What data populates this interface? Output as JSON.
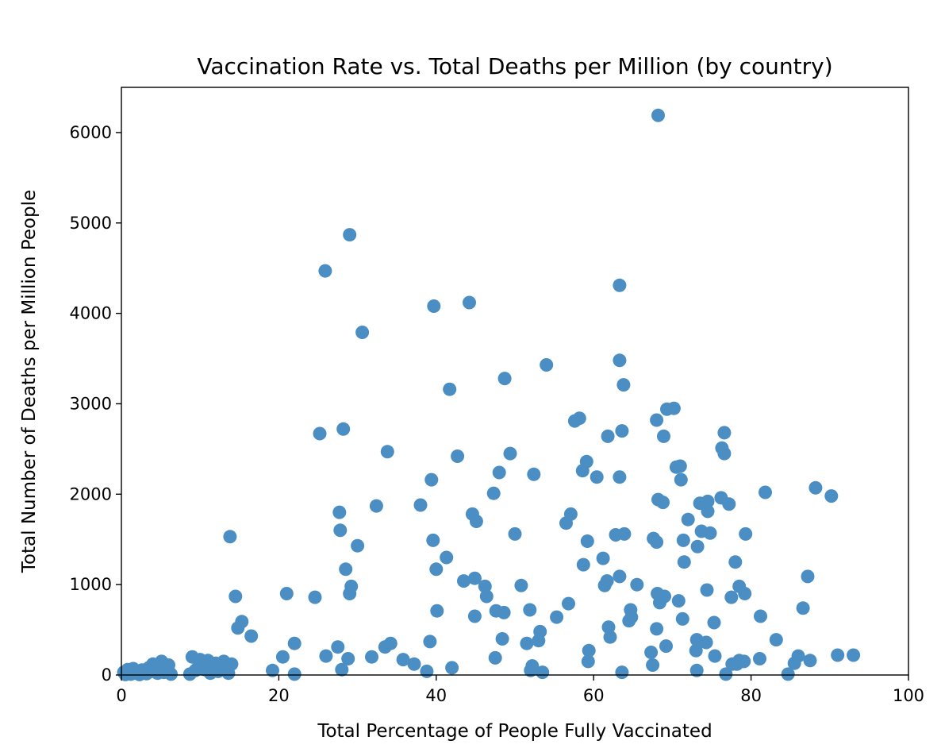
{
  "chart_data": {
    "type": "scatter",
    "title": "Vaccination Rate vs. Total Deaths per Million (by country)",
    "xlabel": "Total Percentage of People Fully Vaccinated",
    "ylabel": "Total Number of Deaths per Million People",
    "xlim": [
      0,
      100
    ],
    "ylim": [
      0,
      6500
    ],
    "xticks": [
      0,
      20,
      40,
      60,
      80,
      100
    ],
    "yticks": [
      0,
      1000,
      2000,
      3000,
      4000,
      5000,
      6000
    ],
    "grid": false,
    "legend": "none",
    "marker_color": "#4a8ec4",
    "series": [
      {
        "points": [
          [
            0.3,
            30
          ],
          [
            0.5,
            5
          ],
          [
            0.8,
            60
          ],
          [
            1.0,
            40
          ],
          [
            1.2,
            10
          ],
          [
            1.5,
            70
          ],
          [
            1.8,
            20
          ],
          [
            2.0,
            45
          ],
          [
            2.3,
            5
          ],
          [
            2.6,
            55
          ],
          [
            2.9,
            30
          ],
          [
            3.2,
            15
          ],
          [
            3.5,
            80
          ],
          [
            3.8,
            40
          ],
          [
            4.0,
            120
          ],
          [
            4.3,
            60
          ],
          [
            4.6,
            20
          ],
          [
            4.9,
            90
          ],
          [
            5.1,
            150
          ],
          [
            5.4,
            30
          ],
          [
            5.7,
            70
          ],
          [
            6.0,
            110
          ],
          [
            6.3,
            10
          ],
          [
            2.2,
            35
          ],
          [
            3.0,
            25
          ],
          [
            4.4,
            50
          ],
          [
            0.9,
            15
          ],
          [
            5.8,
            45
          ],
          [
            8.7,
            10
          ],
          [
            9.0,
            200
          ],
          [
            9.4,
            50
          ],
          [
            9.8,
            90
          ],
          [
            10.0,
            170
          ],
          [
            10.3,
            130
          ],
          [
            10.6,
            60
          ],
          [
            11.0,
            160
          ],
          [
            11.3,
            20
          ],
          [
            11.6,
            80
          ],
          [
            12.0,
            130
          ],
          [
            12.3,
            40
          ],
          [
            12.6,
            110
          ],
          [
            13.0,
            150
          ],
          [
            13.3,
            70
          ],
          [
            13.6,
            20
          ],
          [
            14.0,
            120
          ],
          [
            13.8,
            1530
          ],
          [
            14.5,
            870
          ],
          [
            14.8,
            520
          ],
          [
            15.3,
            590
          ],
          [
            16.5,
            430
          ],
          [
            19.2,
            50
          ],
          [
            20.5,
            200
          ],
          [
            21.0,
            900
          ],
          [
            22.0,
            350
          ],
          [
            22.0,
            10
          ],
          [
            24.6,
            860
          ],
          [
            25.2,
            2670
          ],
          [
            25.9,
            4470
          ],
          [
            26.0,
            210
          ],
          [
            27.5,
            310
          ],
          [
            27.7,
            1800
          ],
          [
            27.8,
            1600
          ],
          [
            28.0,
            60
          ],
          [
            28.2,
            2720
          ],
          [
            28.5,
            1170
          ],
          [
            29.0,
            4870
          ],
          [
            28.8,
            180
          ],
          [
            29.0,
            900
          ],
          [
            29.2,
            980
          ],
          [
            30.0,
            1430
          ],
          [
            30.6,
            3790
          ],
          [
            31.8,
            200
          ],
          [
            32.4,
            1870
          ],
          [
            33.5,
            310
          ],
          [
            33.8,
            2470
          ],
          [
            34.2,
            350
          ],
          [
            35.8,
            170
          ],
          [
            37.2,
            120
          ],
          [
            38.0,
            1880
          ],
          [
            38.8,
            40
          ],
          [
            39.2,
            370
          ],
          [
            39.4,
            2160
          ],
          [
            39.6,
            1490
          ],
          [
            39.7,
            4080
          ],
          [
            40.0,
            1170
          ],
          [
            40.1,
            710
          ],
          [
            41.3,
            1300
          ],
          [
            41.7,
            3160
          ],
          [
            42.0,
            80
          ],
          [
            42.7,
            2420
          ],
          [
            43.5,
            1040
          ],
          [
            44.2,
            4120
          ],
          [
            44.6,
            1780
          ],
          [
            44.9,
            650
          ],
          [
            44.9,
            1070
          ],
          [
            45.1,
            1700
          ],
          [
            46.2,
            980
          ],
          [
            46.4,
            870
          ],
          [
            47.3,
            2010
          ],
          [
            47.5,
            190
          ],
          [
            47.6,
            710
          ],
          [
            48.0,
            2240
          ],
          [
            48.4,
            400
          ],
          [
            48.6,
            690
          ],
          [
            48.7,
            3280
          ],
          [
            49.4,
            2450
          ],
          [
            50.0,
            1560
          ],
          [
            50.8,
            990
          ],
          [
            51.5,
            350
          ],
          [
            51.9,
            720
          ],
          [
            52.0,
            50
          ],
          [
            52.2,
            100
          ],
          [
            52.4,
            2220
          ],
          [
            53.0,
            380
          ],
          [
            53.2,
            480
          ],
          [
            53.5,
            30
          ],
          [
            54.0,
            3430
          ],
          [
            55.3,
            640
          ],
          [
            56.5,
            1680
          ],
          [
            56.8,
            790
          ],
          [
            57.1,
            1780
          ],
          [
            57.6,
            2810
          ],
          [
            58.2,
            2840
          ],
          [
            58.6,
            2260
          ],
          [
            58.7,
            1220
          ],
          [
            59.1,
            2360
          ],
          [
            59.2,
            1480
          ],
          [
            59.3,
            150
          ],
          [
            59.4,
            270
          ],
          [
            60.4,
            2190
          ],
          [
            61.2,
            1290
          ],
          [
            61.4,
            990
          ],
          [
            61.7,
            1040
          ],
          [
            61.8,
            2640
          ],
          [
            61.9,
            530
          ],
          [
            62.1,
            420
          ],
          [
            62.8,
            1550
          ],
          [
            63.3,
            2190
          ],
          [
            63.3,
            1090
          ],
          [
            63.3,
            3480
          ],
          [
            63.3,
            4310
          ],
          [
            63.6,
            2700
          ],
          [
            63.6,
            30
          ],
          [
            63.8,
            3210
          ],
          [
            63.9,
            1560
          ],
          [
            64.5,
            600
          ],
          [
            64.7,
            720
          ],
          [
            64.8,
            640
          ],
          [
            65.5,
            1000
          ],
          [
            67.3,
            250
          ],
          [
            67.5,
            110
          ],
          [
            67.6,
            1510
          ],
          [
            68.0,
            2820
          ],
          [
            68.0,
            1470
          ],
          [
            68.0,
            510
          ],
          [
            68.1,
            900
          ],
          [
            68.2,
            6190
          ],
          [
            68.2,
            1940
          ],
          [
            68.4,
            800
          ],
          [
            68.8,
            1910
          ],
          [
            68.9,
            2640
          ],
          [
            69.0,
            870
          ],
          [
            69.2,
            320
          ],
          [
            69.3,
            2940
          ],
          [
            70.2,
            2950
          ],
          [
            70.5,
            2300
          ],
          [
            70.8,
            820
          ],
          [
            71.0,
            2310
          ],
          [
            71.1,
            2160
          ],
          [
            71.3,
            620
          ],
          [
            71.4,
            1490
          ],
          [
            71.5,
            1250
          ],
          [
            72.0,
            1720
          ],
          [
            73.0,
            270
          ],
          [
            73.1,
            50
          ],
          [
            73.1,
            390
          ],
          [
            73.2,
            1420
          ],
          [
            73.5,
            1900
          ],
          [
            73.7,
            1590
          ],
          [
            74.3,
            360
          ],
          [
            74.4,
            940
          ],
          [
            74.5,
            1810
          ],
          [
            74.5,
            1920
          ],
          [
            74.8,
            1570
          ],
          [
            75.3,
            580
          ],
          [
            75.4,
            210
          ],
          [
            76.2,
            1960
          ],
          [
            76.3,
            2510
          ],
          [
            76.6,
            2450
          ],
          [
            76.6,
            2680
          ],
          [
            76.8,
            10
          ],
          [
            77.2,
            1890
          ],
          [
            77.5,
            860
          ],
          [
            77.6,
            120
          ],
          [
            78.0,
            1250
          ],
          [
            78.2,
            120
          ],
          [
            78.5,
            980
          ],
          [
            78.5,
            160
          ],
          [
            79.1,
            150
          ],
          [
            79.2,
            900
          ],
          [
            79.3,
            1560
          ],
          [
            81.1,
            180
          ],
          [
            81.2,
            650
          ],
          [
            81.8,
            2020
          ],
          [
            83.2,
            390
          ],
          [
            84.7,
            10
          ],
          [
            85.5,
            130
          ],
          [
            86.0,
            210
          ],
          [
            86.6,
            740
          ],
          [
            87.2,
            1090
          ],
          [
            87.5,
            160
          ],
          [
            88.2,
            2070
          ],
          [
            90.2,
            1980
          ],
          [
            91.0,
            220
          ],
          [
            93.0,
            220
          ]
        ]
      }
    ]
  }
}
